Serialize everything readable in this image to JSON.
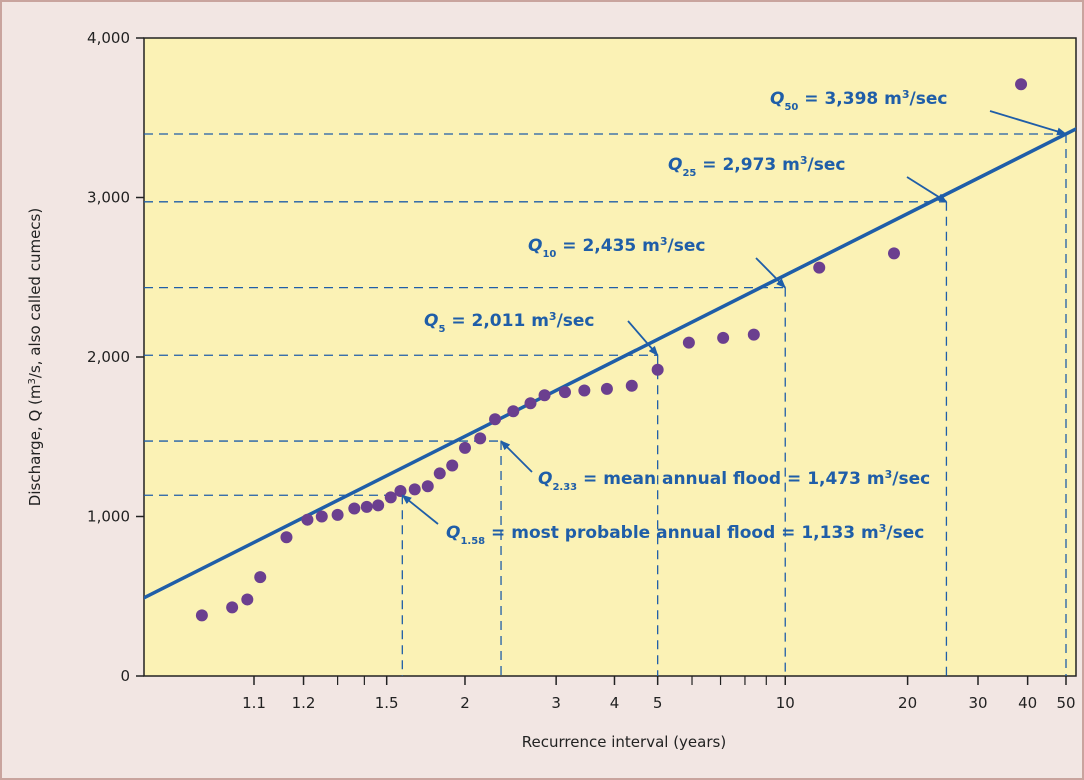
{
  "chart_data": {
    "type": "scatter",
    "xscale": "log (recurrence interval)",
    "xlabel": "Recurrence interval (years)",
    "ylabel": "Discharge, Q (m3/s, also called cumecs)",
    "ylim": [
      0,
      4000
    ],
    "y_ticks": [
      0,
      1000,
      2000,
      3000,
      4000
    ],
    "y_tick_labels": [
      "0",
      "1,000",
      "2,000",
      "3,000",
      "4,000"
    ],
    "x_ticks": [
      1.1,
      1.2,
      1.5,
      2,
      3,
      4,
      5,
      10,
      20,
      30,
      40,
      50
    ],
    "x_tick_labels": [
      "1.1",
      "1.2",
      "1.5",
      "2",
      "3",
      "4",
      "5",
      "10",
      "20",
      "30",
      "40",
      "50"
    ],
    "grid": false,
    "colors": {
      "plot_background": "#fbf2b5",
      "trend_line": "#1f5ea8",
      "points": "#6b3f8f",
      "callout_text": "#1f5ea8",
      "page_background": "#f2e6e3"
    },
    "points": [
      {
        "x": 1.04,
        "y": 380
      },
      {
        "x": 1.07,
        "y": 430
      },
      {
        "x": 1.09,
        "y": 480
      },
      {
        "x": 1.11,
        "y": 620
      },
      {
        "x": 1.16,
        "y": 870
      },
      {
        "x": 1.21,
        "y": 980
      },
      {
        "x": 1.25,
        "y": 1000
      },
      {
        "x": 1.3,
        "y": 1010
      },
      {
        "x": 1.36,
        "y": 1050
      },
      {
        "x": 1.41,
        "y": 1060
      },
      {
        "x": 1.46,
        "y": 1070
      },
      {
        "x": 1.52,
        "y": 1120
      },
      {
        "x": 1.57,
        "y": 1160
      },
      {
        "x": 1.65,
        "y": 1170
      },
      {
        "x": 1.73,
        "y": 1190
      },
      {
        "x": 1.81,
        "y": 1270
      },
      {
        "x": 1.9,
        "y": 1320
      },
      {
        "x": 2.0,
        "y": 1430
      },
      {
        "x": 2.13,
        "y": 1490
      },
      {
        "x": 2.27,
        "y": 1610
      },
      {
        "x": 2.46,
        "y": 1660
      },
      {
        "x": 2.66,
        "y": 1710
      },
      {
        "x": 2.84,
        "y": 1760
      },
      {
        "x": 3.13,
        "y": 1780
      },
      {
        "x": 3.44,
        "y": 1790
      },
      {
        "x": 3.85,
        "y": 1800
      },
      {
        "x": 4.37,
        "y": 1820
      },
      {
        "x": 5.0,
        "y": 1920
      },
      {
        "x": 5.9,
        "y": 2090
      },
      {
        "x": 7.1,
        "y": 2120
      },
      {
        "x": 8.4,
        "y": 2140
      },
      {
        "x": 12.1,
        "y": 2560
      },
      {
        "x": 18.5,
        "y": 2650
      },
      {
        "x": 38.5,
        "y": 3710
      }
    ],
    "trend_line": [
      {
        "x": 1.001,
        "y": 270
      },
      {
        "x": 55,
        "y": 3450
      }
    ],
    "reference_lines": [
      {
        "x": 1.58,
        "y": 1133
      },
      {
        "x": 2.33,
        "y": 1473
      },
      {
        "x": 5,
        "y": 2011
      },
      {
        "x": 10,
        "y": 2435
      },
      {
        "x": 25,
        "y": 2973
      },
      {
        "x": 50,
        "y": 3398
      }
    ],
    "annotations": [
      {
        "q_sub": "50",
        "value": "3,398",
        "arrow_to": {
          "x": 50,
          "y": 3398
        }
      },
      {
        "q_sub": "25",
        "value": "2,973",
        "arrow_to": {
          "x": 25,
          "y": 2973
        }
      },
      {
        "q_sub": "10",
        "value": "2,435",
        "arrow_to": {
          "x": 10,
          "y": 2435
        }
      },
      {
        "q_sub": "5",
        "value": "2,011",
        "arrow_to": {
          "x": 5,
          "y": 2011
        }
      },
      {
        "q_sub": "2.33",
        "label": "mean annual flood",
        "value": "1,473",
        "arrow_to": {
          "x": 2.33,
          "y": 1473
        }
      },
      {
        "q_sub": "1.58",
        "label": "most probable annual flood",
        "value": "1,133",
        "arrow_to": {
          "x": 1.58,
          "y": 1133
        }
      }
    ],
    "unit_text": "m",
    "unit_sup": "3",
    "unit_suffix": "/sec"
  }
}
